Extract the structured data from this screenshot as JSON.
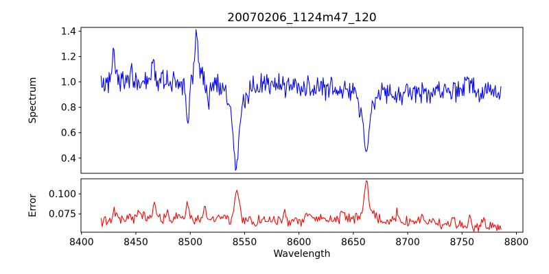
{
  "figure": {
    "background": "#ffffff",
    "axis_color": "#000000",
    "tick_label_color": "#000000"
  },
  "chart_data": {
    "type": "line",
    "title": "20070206_1124m47_120",
    "xlabel": "Wavelength",
    "xlim": [
      8399.5,
      8806
    ],
    "x_data_range": [
      8418,
      8786
    ],
    "x_ticks": [
      8400,
      8450,
      8500,
      8550,
      8600,
      8650,
      8700,
      8750,
      8800
    ],
    "x_tick_labels": [
      "8400",
      "8450",
      "8500",
      "8550",
      "8600",
      "8650",
      "8700",
      "8750",
      "8800"
    ],
    "grid": false,
    "legend": "none",
    "line_width": 1.1,
    "panels": [
      {
        "name": "spectrum",
        "ylabel": "Spectrum",
        "color": "#0000ff",
        "ylim": [
          0.28,
          1.43
        ],
        "y_ticks": [
          1.4,
          1.2,
          1.0,
          0.8,
          0.6,
          0.4
        ],
        "y_tick_labels": [
          "1.4",
          "1.2",
          "1.0",
          "0.8",
          "0.6",
          "0.4"
        ],
        "baseline": 1.0,
        "drift_per_unit": -0.00022,
        "wave1_amp": 0.018,
        "wave1_period": 57,
        "wave2_amp": 0.012,
        "wave2_period": 23,
        "noise_amp": 0.115,
        "seed": 20070206,
        "step": 0.74,
        "observed_max": 1.37,
        "observed_min": 0.33,
        "absorption_lines": [
          {
            "x": 8498.0,
            "depth": 0.36,
            "width": 1.2
          },
          {
            "x": 8516.5,
            "depth": 0.16,
            "width": 1.4
          },
          {
            "x": 8542.2,
            "depth": 0.27,
            "width": 7.0
          },
          {
            "x": 8542.2,
            "depth": 0.38,
            "width": 2.0
          },
          {
            "x": 8662.0,
            "depth": 0.24,
            "width": 5.5
          },
          {
            "x": 8662.0,
            "depth": 0.25,
            "width": 1.6
          }
        ],
        "emission_spikes": [
          {
            "x": 8429.5,
            "height": 0.26,
            "width": 1.1
          },
          {
            "x": 8446.0,
            "height": 0.11,
            "width": 0.9
          },
          {
            "x": 8466.2,
            "height": 0.2,
            "width": 1.0
          },
          {
            "x": 8505.8,
            "height": 0.33,
            "width": 1.3
          },
          {
            "x": 8508.0,
            "height": 0.09,
            "width": 5.0
          },
          {
            "x": 8755.0,
            "height": 0.08,
            "width": 4.0
          }
        ]
      },
      {
        "name": "error",
        "ylabel": "Error",
        "color": "#ff0000",
        "ylim": [
          0.052,
          0.119
        ],
        "y_ticks": [
          0.1,
          0.075
        ],
        "y_tick_labels": [
          "0.100",
          "0.075"
        ],
        "baseline": 0.0655,
        "wave1_amp": 0.0035,
        "wave1_period": 80,
        "wave2_amp": 0.0025,
        "wave2_period": 31,
        "noise_amp": 0.0085,
        "seed": 1124,
        "step": 1.0,
        "observed_max": 0.116,
        "peaks": [
          {
            "x": 8431,
            "height": 0.013,
            "width": 1.5
          },
          {
            "x": 8453,
            "height": 0.01,
            "width": 1.5
          },
          {
            "x": 8467,
            "height": 0.014,
            "width": 1.3
          },
          {
            "x": 8479,
            "height": 0.01,
            "width": 1.2
          },
          {
            "x": 8497,
            "height": 0.022,
            "width": 1.0
          },
          {
            "x": 8513,
            "height": 0.013,
            "width": 1.3
          },
          {
            "x": 8531,
            "height": 0.009,
            "width": 1.5
          },
          {
            "x": 8543,
            "height": 0.038,
            "width": 2.2
          },
          {
            "x": 8586,
            "height": 0.01,
            "width": 1.5
          },
          {
            "x": 8610,
            "height": 0.007,
            "width": 1.5
          },
          {
            "x": 8640,
            "height": 0.008,
            "width": 1.5
          },
          {
            "x": 8662,
            "height": 0.047,
            "width": 2.0
          },
          {
            "x": 8668,
            "height": 0.008,
            "width": 3.0
          },
          {
            "x": 8690,
            "height": 0.009,
            "width": 1.5
          },
          {
            "x": 8712,
            "height": 0.008,
            "width": 1.5
          },
          {
            "x": 8742,
            "height": 0.012,
            "width": 1.5
          },
          {
            "x": 8757,
            "height": 0.013,
            "width": 1.3
          },
          {
            "x": 8770,
            "height": 0.012,
            "width": 1.2
          }
        ]
      }
    ]
  }
}
